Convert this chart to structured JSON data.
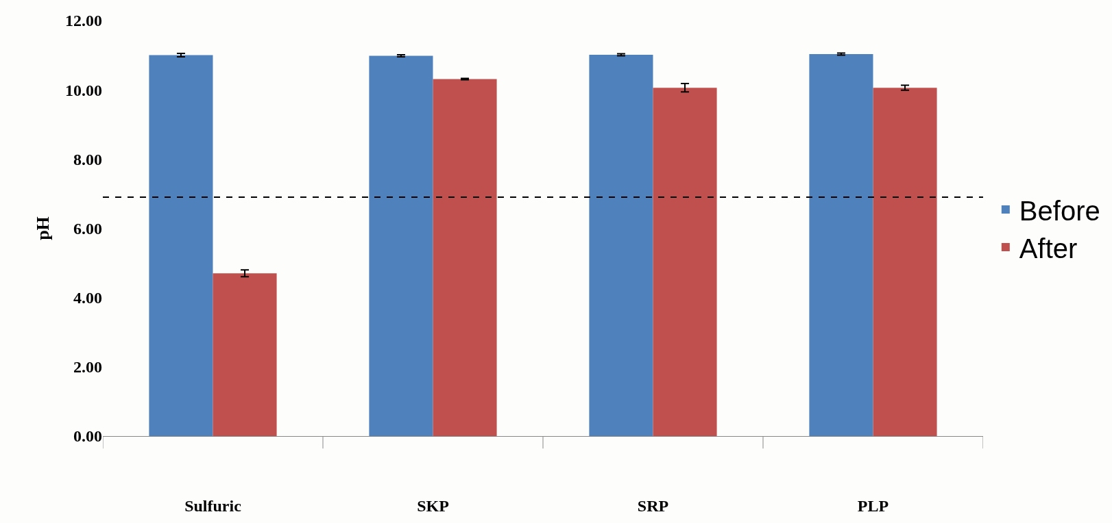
{
  "chart_data": {
    "type": "bar",
    "ylabel": "pH",
    "categories": [
      "Sulfuric",
      "SKP",
      "SRP",
      "PLP"
    ],
    "series": [
      {
        "name": "Before",
        "color": "#4f81bd",
        "values": [
          11.0,
          10.98,
          11.01,
          11.03
        ],
        "errors": [
          0.05,
          0.03,
          0.03,
          0.03
        ]
      },
      {
        "name": "After",
        "color": "#c0504d",
        "values": [
          4.7,
          10.31,
          10.06,
          10.06
        ],
        "errors": [
          0.1,
          0.02,
          0.12,
          0.07
        ]
      }
    ],
    "ylim": [
      0,
      12
    ],
    "yticks": [
      {
        "value": 0,
        "label": "0.00"
      },
      {
        "value": 2,
        "label": "2.00"
      },
      {
        "value": 4,
        "label": "4.00"
      },
      {
        "value": 6,
        "label": "6.00"
      },
      {
        "value": 8,
        "label": "8.00"
      },
      {
        "value": 10,
        "label": "10.00"
      },
      {
        "value": 12,
        "label": "12.00"
      }
    ],
    "ref_lines": [
      {
        "axis": "y",
        "value": 6.9,
        "line_style": "dashed",
        "color": "#000000"
      }
    ],
    "legend": "right"
  }
}
